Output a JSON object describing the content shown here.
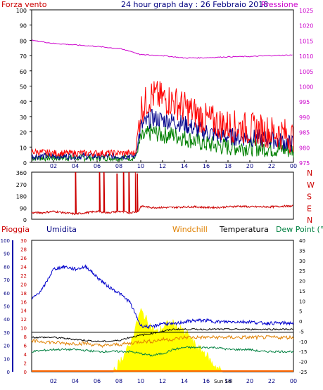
{
  "panel1": {
    "left_title": "Forza vento",
    "center_title": "24 hour graph day : 26 Febbraio 2018",
    "right_title": "Pressione",
    "left_ticks": [
      "100",
      "90",
      "80",
      "70",
      "60",
      "50",
      "40",
      "30",
      "20",
      "10",
      "0"
    ],
    "right_ticks": [
      "1025",
      "1020",
      "1015",
      "1010",
      "1005",
      "1000",
      "995",
      "990",
      "985",
      "980",
      "975"
    ],
    "x_ticks": [
      "02",
      "04",
      "06",
      "08",
      "10",
      "12",
      "14",
      "16",
      "18",
      "20",
      "22",
      "00"
    ],
    "colors": {
      "left_title": "#cc0000",
      "center_title": "#000080",
      "right_title": "#cc00cc"
    }
  },
  "panel2": {
    "left_ticks": [
      "360",
      "270",
      "180",
      "90",
      "0"
    ],
    "right_ticks": [
      "N",
      "W",
      "S",
      "E",
      "N"
    ],
    "right_color": "#cc0000"
  },
  "panel3": {
    "label_pioggia": "Pioggia",
    "label_umidita": "Umidita",
    "label_windchill": "Windchill",
    "label_temperatura": "Temperatura",
    "label_dewpoint": "Dew Point (°C",
    "left_ticks_humidity": [
      "100",
      "90",
      "80",
      "70",
      "60",
      "50",
      "40",
      "30",
      "20",
      "10",
      "0"
    ],
    "left_ticks_rain": [
      "30",
      "28",
      "26",
      "24",
      "22",
      "20",
      "18",
      "16",
      "14",
      "12",
      "10",
      "8",
      "6",
      "4",
      "2",
      "0"
    ],
    "right_ticks": [
      "40",
      "35",
      "30",
      "25",
      "20",
      "15",
      "10",
      "5",
      "0",
      "-5",
      "-10",
      "-15",
      "-20",
      "-25"
    ],
    "x_ticks": [
      "02",
      "04",
      "06",
      "08",
      "10",
      "12",
      "14",
      "16",
      "18",
      "20",
      "22",
      "00"
    ],
    "sun_label": "Sun Sel"
  },
  "chart_data": [
    {
      "type": "line",
      "title": "24 hour graph day : 26 Febbraio 2018",
      "x_unit": "hour",
      "x_ticks": [
        "02",
        "04",
        "06",
        "08",
        "10",
        "12",
        "14",
        "16",
        "18",
        "20",
        "22",
        "00"
      ],
      "y_left_label": "Forza vento",
      "y_left_lim": [
        0,
        100
      ],
      "y_right_label": "Pressione",
      "y_right_lim": [
        975,
        1025
      ],
      "series": [
        {
          "name": "Forza vento",
          "axis": "left",
          "color": "#ff0000",
          "x": [
            0,
            2,
            4,
            6,
            8,
            9.5,
            10,
            11,
            12,
            13,
            14,
            15,
            16,
            17,
            18,
            19,
            20,
            21,
            22,
            23,
            24
          ],
          "y": [
            7,
            6,
            6,
            6,
            6,
            6,
            35,
            44,
            42,
            40,
            36,
            32,
            28,
            26,
            24,
            23,
            22,
            21,
            20,
            19,
            16
          ]
        },
        {
          "name": "Pressione",
          "axis": "right",
          "color": "#cc00cc",
          "x": [
            0,
            2,
            4,
            6,
            8,
            9,
            10,
            12,
            14,
            16,
            18,
            20,
            22,
            24
          ],
          "y": [
            1015,
            1014,
            1013.5,
            1013,
            1012.3,
            1011.5,
            1010.3,
            1010,
            1009.2,
            1009.3,
            1009.6,
            1009.7,
            1010,
            1010.2
          ]
        },
        {
          "name": "",
          "axis": "left",
          "color": "#00008b",
          "x": [
            0,
            2,
            4,
            6,
            8,
            9.5,
            10,
            11,
            12,
            13,
            14,
            15,
            16,
            17,
            18,
            20,
            22,
            24
          ],
          "y": [
            4,
            4,
            4,
            4,
            4,
            4,
            23,
            29,
            28,
            27,
            25,
            22,
            20,
            18,
            17,
            16,
            15,
            12
          ]
        },
        {
          "name": "",
          "axis": "left",
          "color": "#008000",
          "x": [
            0,
            2,
            4,
            6,
            8,
            9.5,
            10,
            11,
            12,
            13,
            14,
            15,
            16,
            17,
            18,
            20,
            22,
            24
          ],
          "y": [
            3,
            3,
            3,
            3,
            3,
            3,
            15,
            20,
            18,
            18,
            16,
            14,
            12,
            11,
            10,
            10,
            9,
            8
          ]
        }
      ]
    },
    {
      "type": "line",
      "x_ticks": [
        "02",
        "04",
        "06",
        "08",
        "10",
        "12",
        "14",
        "16",
        "18",
        "20",
        "22",
        "00"
      ],
      "y_lim": [
        0,
        360
      ],
      "y_right_ticks": [
        "N",
        "W",
        "S",
        "E",
        "N"
      ],
      "series": [
        {
          "name": "",
          "color": "#cc0000",
          "x": [
            0,
            1,
            2,
            3,
            4,
            5,
            6,
            7,
            8,
            9,
            9.8,
            10,
            11,
            12,
            13,
            14,
            15,
            16,
            17,
            18,
            19,
            20,
            21,
            22,
            23,
            24
          ],
          "y": [
            50,
            50,
            60,
            50,
            40,
            50,
            60,
            50,
            60,
            50,
            60,
            100,
            90,
            90,
            90,
            95,
            95,
            90,
            90,
            95,
            100,
            95,
            95,
            95,
            100,
            100
          ]
        }
      ]
    },
    {
      "type": "line",
      "x_ticks": [
        "02",
        "04",
        "06",
        "08",
        "10",
        "12",
        "14",
        "16",
        "18",
        "20",
        "22",
        "00"
      ],
      "y_left_label": "Umidita",
      "y_left_lim": [
        0,
        100
      ],
      "y_right_label": "Temperatura",
      "y_right_lim": [
        -25,
        40
      ],
      "series": [
        {
          "name": "Umidita",
          "axis": "left",
          "color": "#0000cc",
          "x": [
            0,
            1,
            2,
            3,
            4,
            5,
            6,
            7,
            8,
            9,
            10,
            11,
            12,
            13,
            14,
            15,
            16,
            17,
            18,
            19,
            20,
            21,
            22,
            23,
            24
          ],
          "y": [
            55,
            63,
            78,
            80,
            78,
            80,
            72,
            65,
            60,
            53,
            35,
            34,
            37,
            36,
            38,
            39,
            39,
            38,
            38,
            38,
            38,
            37,
            37,
            37,
            37
          ]
        },
        {
          "name": "Temperatura",
          "axis": "right",
          "color": "#000000",
          "x": [
            0,
            1,
            2,
            3,
            4,
            5,
            6,
            7,
            8,
            9,
            10,
            11,
            12,
            13,
            14,
            15,
            16,
            17,
            18,
            19,
            20,
            21,
            22,
            23,
            24
          ],
          "y": [
            -8,
            -8,
            -8,
            -8.5,
            -9,
            -9.5,
            -10,
            -10,
            -9.5,
            -8,
            -7,
            -6,
            -5,
            -4,
            -4,
            -4,
            -4,
            -4,
            -4,
            -4,
            -4,
            -4,
            -4,
            -4,
            -4
          ]
        },
        {
          "name": "Windchill",
          "axis": "right",
          "color": "#e08000",
          "x": [
            0,
            1,
            2,
            3,
            4,
            5,
            6,
            7,
            8,
            9,
            10,
            11,
            12,
            13,
            14,
            15,
            16,
            17,
            18,
            19,
            20,
            21,
            22,
            23,
            24
          ],
          "y": [
            -10,
            -10,
            -10.5,
            -11,
            -11,
            -11,
            -12,
            -12,
            -11.5,
            -11,
            -10,
            -10,
            -9,
            -9,
            -8,
            -8,
            -8,
            -8,
            -8,
            -8,
            -8,
            -8,
            -8,
            -8,
            -8
          ]
        },
        {
          "name": "Dew Point (°C",
          "axis": "right",
          "color": "#008040",
          "x": [
            0,
            1,
            2,
            3,
            4,
            5,
            6,
            7,
            8,
            9,
            10,
            11,
            12,
            13,
            14,
            15,
            16,
            17,
            18,
            19,
            20,
            21,
            22,
            23,
            24
          ],
          "y": [
            -15,
            -14.5,
            -14,
            -14,
            -14,
            -14.5,
            -15,
            -15,
            -15,
            -15,
            -16,
            -17,
            -16,
            -14,
            -13,
            -13,
            -13,
            -13,
            -14,
            -14,
            -14,
            -15,
            -15,
            -15,
            -15
          ]
        },
        {
          "name": "",
          "axis": "right",
          "color": "#000000",
          "x": [
            0,
            24
          ],
          "y": [
            -5.5,
            -5.5
          ]
        },
        {
          "name": "",
          "axis": "left_rain",
          "color": "#ffff00",
          "kind": "area",
          "x": [
            7.5,
            8,
            8.5,
            9,
            9.5,
            10,
            10.5,
            11,
            11.5,
            12,
            12.5,
            13,
            13.5,
            14,
            14.5,
            15,
            15.5,
            16,
            16.5,
            17,
            17.5
          ],
          "y": [
            0,
            2,
            4,
            6,
            10,
            14,
            12,
            10,
            9,
            10,
            11,
            11,
            10,
            9,
            8,
            6,
            5,
            4,
            2,
            1,
            0
          ]
        }
      ]
    }
  ]
}
